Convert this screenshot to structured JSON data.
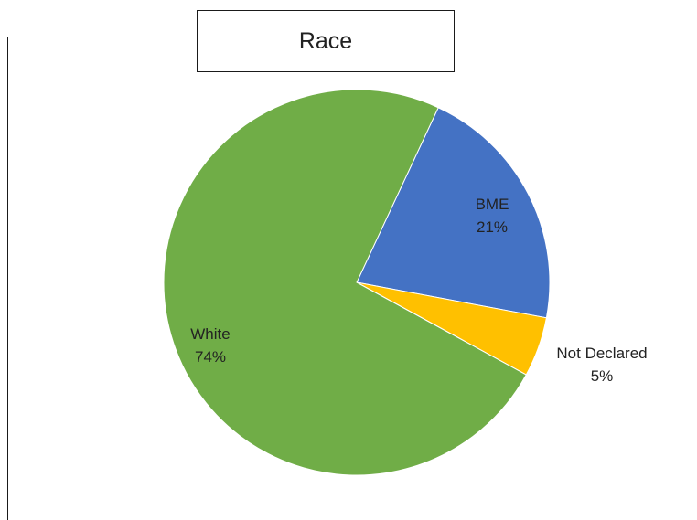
{
  "chart_data": {
    "type": "pie",
    "title": "Race",
    "slices": [
      {
        "label": "BME",
        "value": 21,
        "value_label": "21%",
        "color": "#4472C4"
      },
      {
        "label": "Not Declared",
        "value": 5,
        "value_label": "5%",
        "color": "#FFC000"
      },
      {
        "label": "White",
        "value": 74,
        "value_label": "74%",
        "color": "#70AD47"
      }
    ],
    "legend": "none",
    "data_labels": "category name and percentage"
  }
}
